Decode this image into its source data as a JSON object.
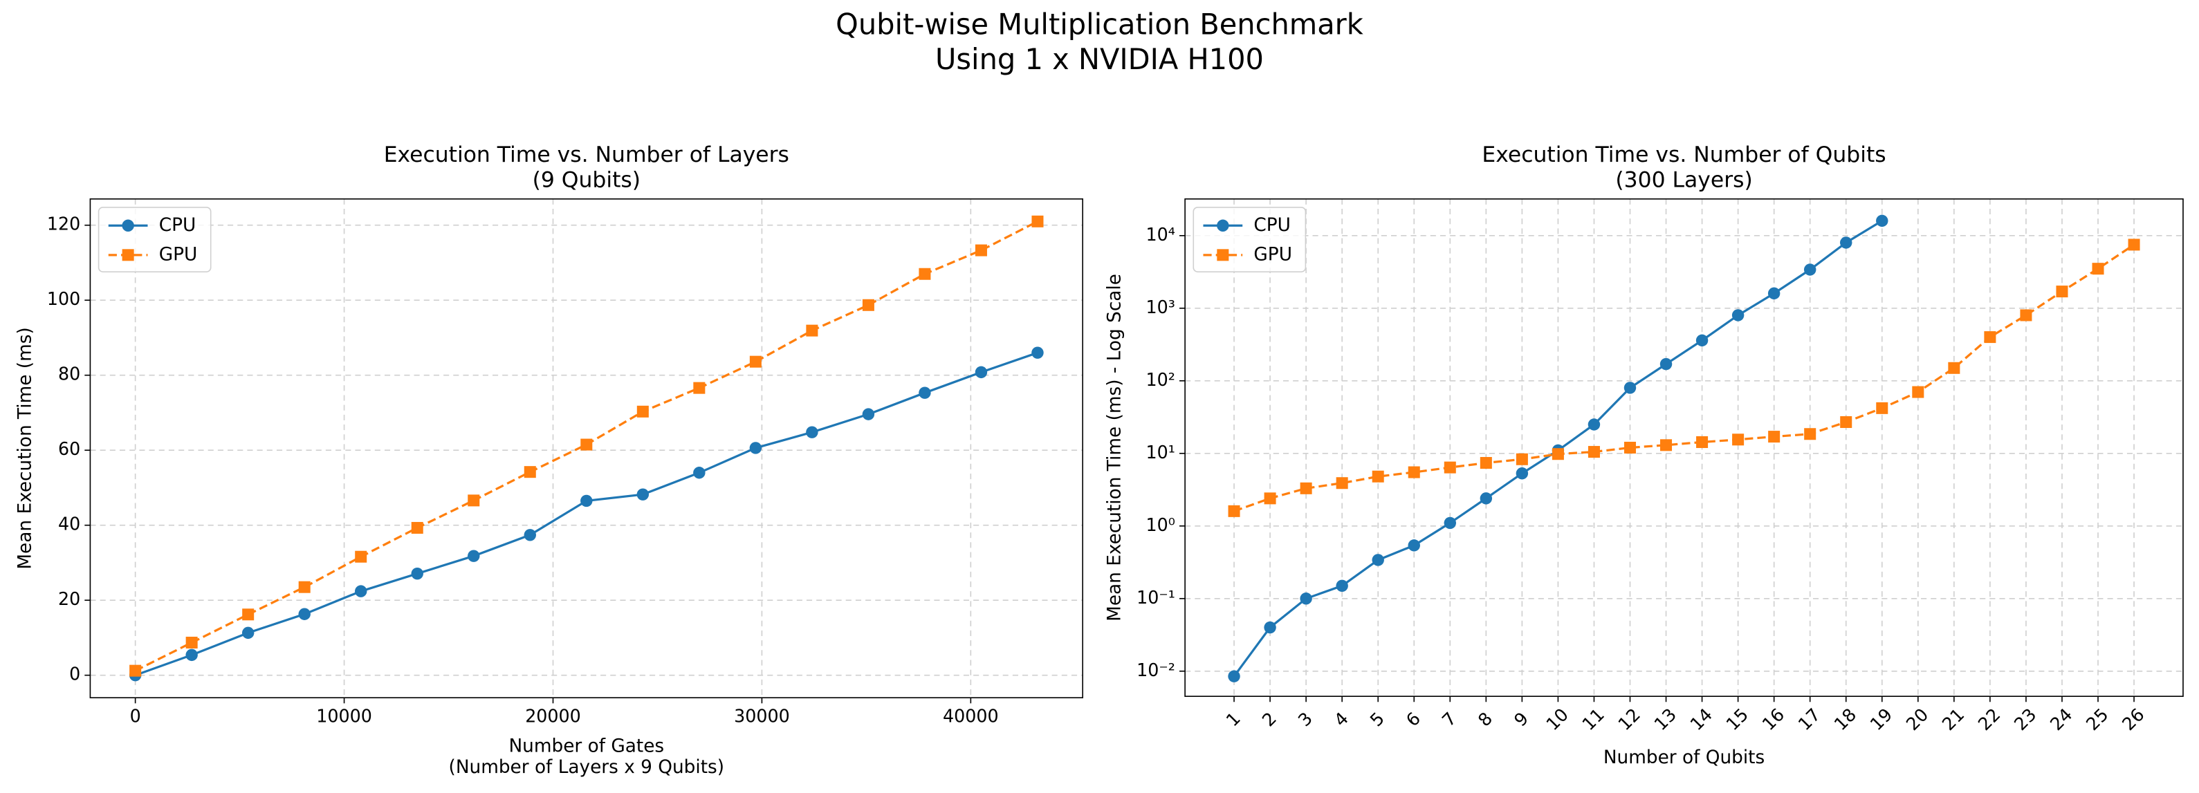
{
  "suptitle": [
    "Qubit-wise Multiplication Benchmark",
    "Using 1 x NVIDIA H100"
  ],
  "chart_data": [
    {
      "type": "line",
      "title": [
        "Execution Time vs. Number of Layers",
        "(9 Qubits)"
      ],
      "xlabel": [
        "Number of Gates",
        "(Number of Layers x 9 Qubits)"
      ],
      "ylabel": "Mean Execution Time (ms)",
      "x": [
        0,
        2700,
        5400,
        8100,
        10800,
        13500,
        16200,
        18900,
        21600,
        24300,
        27000,
        29700,
        32400,
        35100,
        37800,
        40500,
        43200
      ],
      "series": [
        {
          "name": "CPU",
          "color": "#1f77b4",
          "marker": "circle",
          "linestyle": "solid",
          "values": [
            0,
            5.4,
            11.3,
            16.3,
            22.4,
            27.1,
            31.8,
            37.4,
            46.5,
            48.2,
            54,
            60.6,
            64.8,
            69.6,
            75.3,
            80.8,
            86
          ]
        },
        {
          "name": "GPU",
          "color": "#ff7f0e",
          "marker": "square",
          "linestyle": "dashed",
          "values": [
            1.2,
            8.7,
            16.2,
            23.5,
            31.6,
            39.3,
            46.6,
            54.2,
            61.5,
            70.3,
            76.6,
            83.6,
            91.9,
            98.7,
            107,
            113.3,
            121
          ]
        }
      ],
      "xlim": [
        -2160,
        45360
      ],
      "xticks": [
        0,
        10000,
        20000,
        30000,
        40000
      ],
      "ylim": [
        -6,
        127
      ],
      "yticks": [
        0,
        20,
        40,
        60,
        80,
        100,
        120
      ],
      "grid": true,
      "legend": "upper left"
    },
    {
      "type": "line",
      "title": [
        "Execution Time vs. Number of Qubits",
        "(300 Layers)"
      ],
      "xlabel": [
        "Number of Qubits"
      ],
      "ylabel": "Mean Execution Time (ms) - Log Scale",
      "categories": [
        "1",
        "2",
        "3",
        "4",
        "5",
        "6",
        "7",
        "8",
        "9",
        "10",
        "11",
        "12",
        "13",
        "14",
        "15",
        "16",
        "17",
        "18",
        "19",
        "20",
        "21",
        "22",
        "23",
        "24",
        "25",
        "26"
      ],
      "series": [
        {
          "name": "CPU",
          "color": "#1f77b4",
          "marker": "circle",
          "linestyle": "solid",
          "values": [
            0.0085,
            0.04,
            0.1,
            0.15,
            0.34,
            0.54,
            1.1,
            2.4,
            5.3,
            11,
            25,
            80,
            170,
            360,
            800,
            1600,
            3400,
            8000,
            16000,
            null,
            null,
            null,
            null,
            null,
            null,
            null
          ]
        },
        {
          "name": "GPU",
          "color": "#ff7f0e",
          "marker": "square",
          "linestyle": "dashed",
          "values": [
            1.6,
            2.4,
            3.3,
            3.9,
            4.8,
            5.5,
            6.4,
            7.4,
            8.3,
            9.8,
            10.5,
            12,
            13,
            14.3,
            15.5,
            17,
            18.5,
            27,
            42,
            70,
            150,
            400,
            800,
            1700,
            3500,
            7500
          ]
        }
      ],
      "ylim": [
        0.0045,
        32000
      ],
      "log_y": true,
      "yticks": [
        {
          "value": 0.01,
          "label": "10⁻²"
        },
        {
          "value": 0.1,
          "label": "10⁻¹"
        },
        {
          "value": 1,
          "label": "10⁰"
        },
        {
          "value": 10,
          "label": "10¹"
        },
        {
          "value": 100,
          "label": "10²"
        },
        {
          "value": 1000,
          "label": "10³"
        },
        {
          "value": 10000,
          "label": "10⁴"
        }
      ],
      "grid": true,
      "legend": "upper left"
    }
  ]
}
